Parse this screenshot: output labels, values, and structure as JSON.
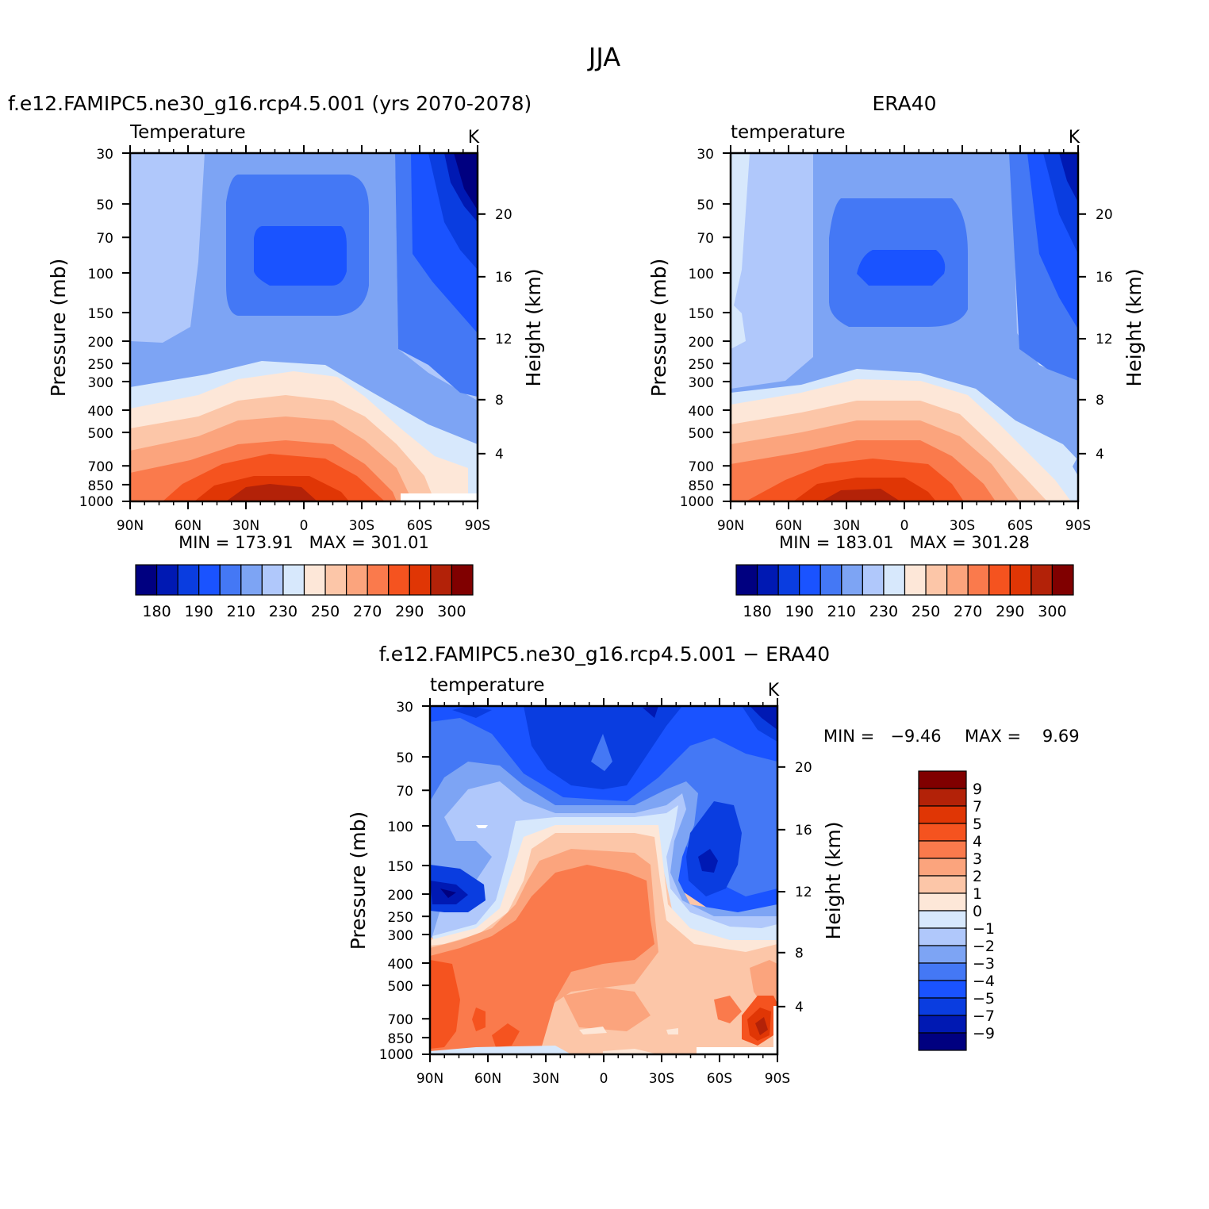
{
  "figure": {
    "title": "JJA"
  },
  "chart_data": [
    {
      "type": "heatmap",
      "title": "f.e12.FAMIPC5.ne30_g16.rcp4.5.001 (yrs 2070-2078)",
      "left_label": "Temperature",
      "units": "K",
      "ylabel": "Pressure (mb)",
      "ylabel_right": "Height (km)",
      "x_ticks": [
        "90N",
        "60N",
        "30N",
        "0",
        "30S",
        "60S",
        "90S"
      ],
      "y_ticks": [
        "30",
        "50",
        "70",
        "100",
        "150",
        "200",
        "250",
        "300",
        "400",
        "500",
        "700",
        "850",
        "1000"
      ],
      "y_right_ticks": [
        "20",
        "16",
        "12",
        "8",
        "4"
      ],
      "stats": "MIN = 173.91   MAX = 301.01",
      "colorbar_labels": [
        "180",
        "190",
        "210",
        "230",
        "250",
        "270",
        "290",
        "300"
      ]
    },
    {
      "type": "heatmap",
      "title": "ERA40",
      "left_label": "temperature",
      "units": "K",
      "ylabel": "Pressure (mb)",
      "ylabel_right": "Height (km)",
      "x_ticks": [
        "90N",
        "60N",
        "30N",
        "0",
        "30S",
        "60S",
        "90S"
      ],
      "y_ticks": [
        "30",
        "50",
        "70",
        "100",
        "150",
        "200",
        "250",
        "300",
        "400",
        "500",
        "700",
        "850",
        "1000"
      ],
      "y_right_ticks": [
        "20",
        "16",
        "12",
        "8",
        "4"
      ],
      "stats": "MIN = 183.01   MAX = 301.28",
      "colorbar_labels": [
        "180",
        "190",
        "210",
        "230",
        "250",
        "270",
        "290",
        "300"
      ]
    },
    {
      "type": "heatmap",
      "title": "f.e12.FAMIPC5.ne30_g16.rcp4.5.001 − ERA40",
      "left_label": "temperature",
      "units": "K",
      "ylabel": "Pressure (mb)",
      "ylabel_right": "Height (km)",
      "x_ticks": [
        "90N",
        "60N",
        "30N",
        "0",
        "30S",
        "60S",
        "90S"
      ],
      "y_ticks": [
        "30",
        "50",
        "70",
        "100",
        "150",
        "200",
        "250",
        "300",
        "400",
        "500",
        "700",
        "850",
        "1000"
      ],
      "y_right_ticks": [
        "20",
        "16",
        "12",
        "8",
        "4"
      ],
      "stats_min": "MIN =   −9.46",
      "stats_max": "MAX =    9.69",
      "colorbar_labels": [
        "9",
        "7",
        "5",
        "4",
        "3",
        "2",
        "1",
        "0",
        "−1",
        "−2",
        "−3",
        "−4",
        "−5",
        "−7",
        "−9"
      ]
    }
  ],
  "colors": {
    "temperature_scale": [
      "#000080",
      "#0019b3",
      "#0a3de0",
      "#1a53ff",
      "#4478f5",
      "#7da4f4",
      "#b0c8fb",
      "#d7e8fc",
      "#fde7d8",
      "#fcc6a8",
      "#fba47d",
      "#fa7a4c",
      "#f5531f",
      "#e03605",
      "#b32208",
      "#800000"
    ],
    "difference_scale": [
      "#000080",
      "#0019b3",
      "#0a3de0",
      "#1a53ff",
      "#4478f5",
      "#7da4f4",
      "#b0c8fb",
      "#d7e8fc",
      "#fde7d8",
      "#fcc6a8",
      "#fba47d",
      "#fa7a4c",
      "#f5531f",
      "#e03605",
      "#b32208",
      "#800000"
    ]
  }
}
